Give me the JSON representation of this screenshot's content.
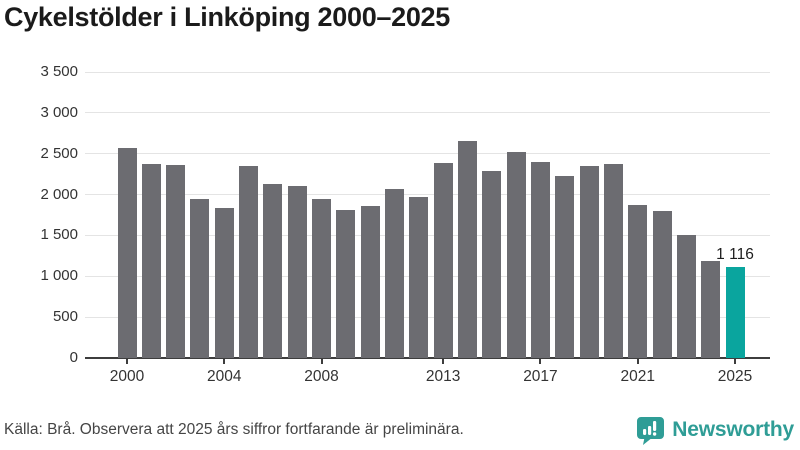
{
  "title": "Cykelstölder i Linköping 2000–2025",
  "footer": {
    "source": "Källa: Brå. Observera att 2025 års siffror fortfarande är preliminära.",
    "brand": "Newsworthy",
    "logo_icon": "bar-chart-speech-bubble-icon"
  },
  "colors": {
    "bar_default": "#6c6c71",
    "bar_highlight": "#0aa59e",
    "brand_teal": "#2f9d96",
    "grid": "#e4e4e4",
    "axis": "#3d3d3d",
    "title_text": "#1b1b1b",
    "tick_text": "#333333",
    "footer_text": "#454545"
  },
  "chart_data": {
    "type": "bar",
    "title": "Cykelstölder i Linköping 2000–2025",
    "categories": [
      2000,
      2001,
      2002,
      2003,
      2004,
      2005,
      2006,
      2007,
      2008,
      2009,
      2010,
      2011,
      2012,
      2013,
      2014,
      2015,
      2016,
      2017,
      2018,
      2019,
      2020,
      2021,
      2022,
      2023,
      2024,
      2025
    ],
    "values": [
      2570,
      2380,
      2360,
      1940,
      1840,
      2350,
      2130,
      2100,
      1940,
      1810,
      1855,
      2070,
      1975,
      2390,
      2650,
      2290,
      2520,
      2400,
      2230,
      2350,
      2370,
      1875,
      1800,
      1500,
      1190,
      1116
    ],
    "highlight": {
      "year": 2025,
      "value": 1116,
      "label": "1 116"
    },
    "xlabel": "",
    "ylabel": "",
    "ylim": [
      0,
      3500
    ],
    "ytick_step": 500,
    "ytick_labels": [
      "0",
      "500",
      "1 000",
      "1 500",
      "2 000",
      "2 500",
      "3 000",
      "3 500"
    ],
    "xticks": [
      2000,
      2004,
      2008,
      2013,
      2017,
      2021,
      2025
    ],
    "grid": "horizontal",
    "legend": "none",
    "bar_color": "#6c6c71",
    "highlight_color": "#0aa59e"
  }
}
